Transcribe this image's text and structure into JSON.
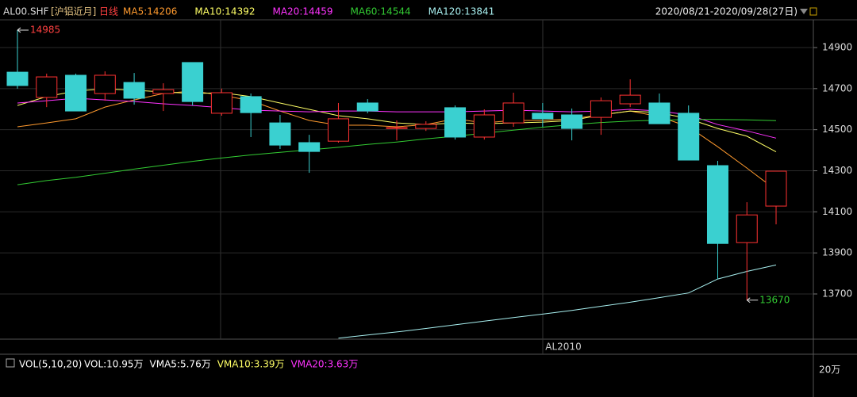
{
  "header": {
    "symbol": "AL00.SHF",
    "name": "[沪铝近月]",
    "period": "日线",
    "range": "2020/08/21-2020/09/28(27日)"
  },
  "chart_data": {
    "type": "candlestick",
    "open": [
      14780,
      14657,
      14765,
      14676,
      14730,
      14676,
      14827,
      14580,
      14661,
      14533,
      14437,
      14444,
      14630,
      14506,
      14506,
      14607,
      14464,
      14533,
      14580,
      14572,
      14560,
      14626,
      14630,
      14580,
      14325,
      13950,
      14128
    ],
    "high": [
      14985,
      14773,
      14773,
      14784,
      14776,
      14726,
      14827,
      14700,
      14676,
      14572,
      14475,
      14630,
      14649,
      14545,
      14541,
      14618,
      14599,
      14680,
      14630,
      14603,
      14657,
      14745,
      14676,
      14618,
      14348,
      14147,
      14298
    ],
    "low": [
      14700,
      14610,
      14591,
      14641,
      14622,
      14591,
      14618,
      14568,
      14464,
      14406,
      14290,
      14437,
      14580,
      14448,
      14494,
      14452,
      14452,
      14514,
      14514,
      14448,
      14475,
      14610,
      14529,
      14352,
      13773,
      13670,
      14039
    ],
    "close": [
      14715,
      14757,
      14591,
      14765,
      14653,
      14695,
      14637,
      14680,
      14583,
      14425,
      14394,
      14553,
      14591,
      14510,
      14526,
      14464,
      14572,
      14630,
      14553,
      14506,
      14641,
      14668,
      14529,
      14352,
      13946,
      14085,
      14298
    ],
    "up_color": "#ff3232",
    "down_color": "#3ad0d0",
    "series": [
      {
        "name": "MA5:14206",
        "color": "#ff9a2e",
        "values": [
          14514,
          14533,
          14553,
          14610,
          14645,
          14676,
          14688,
          14668,
          14641,
          14591,
          14545,
          14522,
          14522,
          14514,
          14525,
          14553,
          14533,
          14545,
          14545,
          14553,
          14572,
          14591,
          14564,
          14514,
          14417,
          14313,
          14206
        ]
      },
      {
        "name": "MA10:14392",
        "color": "#ffff66",
        "values": [
          14618,
          14661,
          14688,
          14699,
          14692,
          14684,
          14676,
          14680,
          14661,
          14630,
          14599,
          14568,
          14553,
          14533,
          14525,
          14533,
          14529,
          14533,
          14537,
          14545,
          14572,
          14591,
          14583,
          14553,
          14506,
          14468,
          14392
        ]
      },
      {
        "name": "MA20:14459",
        "color": "#ff33ff",
        "values": [
          14630,
          14641,
          14653,
          14645,
          14637,
          14626,
          14618,
          14607,
          14595,
          14591,
          14587,
          14591,
          14591,
          14587,
          14587,
          14587,
          14591,
          14595,
          14591,
          14587,
          14591,
          14599,
          14591,
          14572,
          14525,
          14494,
          14459
        ]
      },
      {
        "name": "MA60:14544",
        "color": "#33cc33",
        "values": [
          14232,
          14252,
          14268,
          14288,
          14308,
          14327,
          14346,
          14362,
          14377,
          14390,
          14402,
          14414,
          14428,
          14440,
          14455,
          14468,
          14483,
          14498,
          14512,
          14525,
          14535,
          14542,
          14546,
          14550,
          14550,
          14548,
          14544
        ]
      },
      {
        "name": "MA120:13841",
        "color": "#a8f0f0",
        "values": [
          null,
          null,
          null,
          null,
          null,
          null,
          null,
          null,
          null,
          null,
          null,
          13485,
          13500,
          13515,
          13532,
          13550,
          13568,
          13585,
          13602,
          13620,
          13640,
          13660,
          13682,
          13705,
          13773,
          13810,
          13841
        ]
      }
    ],
    "ylim": [
      13480,
      15035
    ],
    "yticks": [
      13700,
      13900,
      14100,
      14300,
      14500,
      14700,
      14900
    ],
    "grid": true,
    "contract_label": "AL2010"
  },
  "volume": {
    "title": "VOL(5,10,20)",
    "items": [
      {
        "text": "VOL:10.95万",
        "color": "#ffffff"
      },
      {
        "text": "VMA5:5.76万",
        "color": "#ffffff"
      },
      {
        "text": "VMA10:3.39万",
        "color": "#ffff66"
      },
      {
        "text": "VMA20:3.63万",
        "color": "#ff33ff"
      }
    ],
    "tick_label": "20万"
  }
}
